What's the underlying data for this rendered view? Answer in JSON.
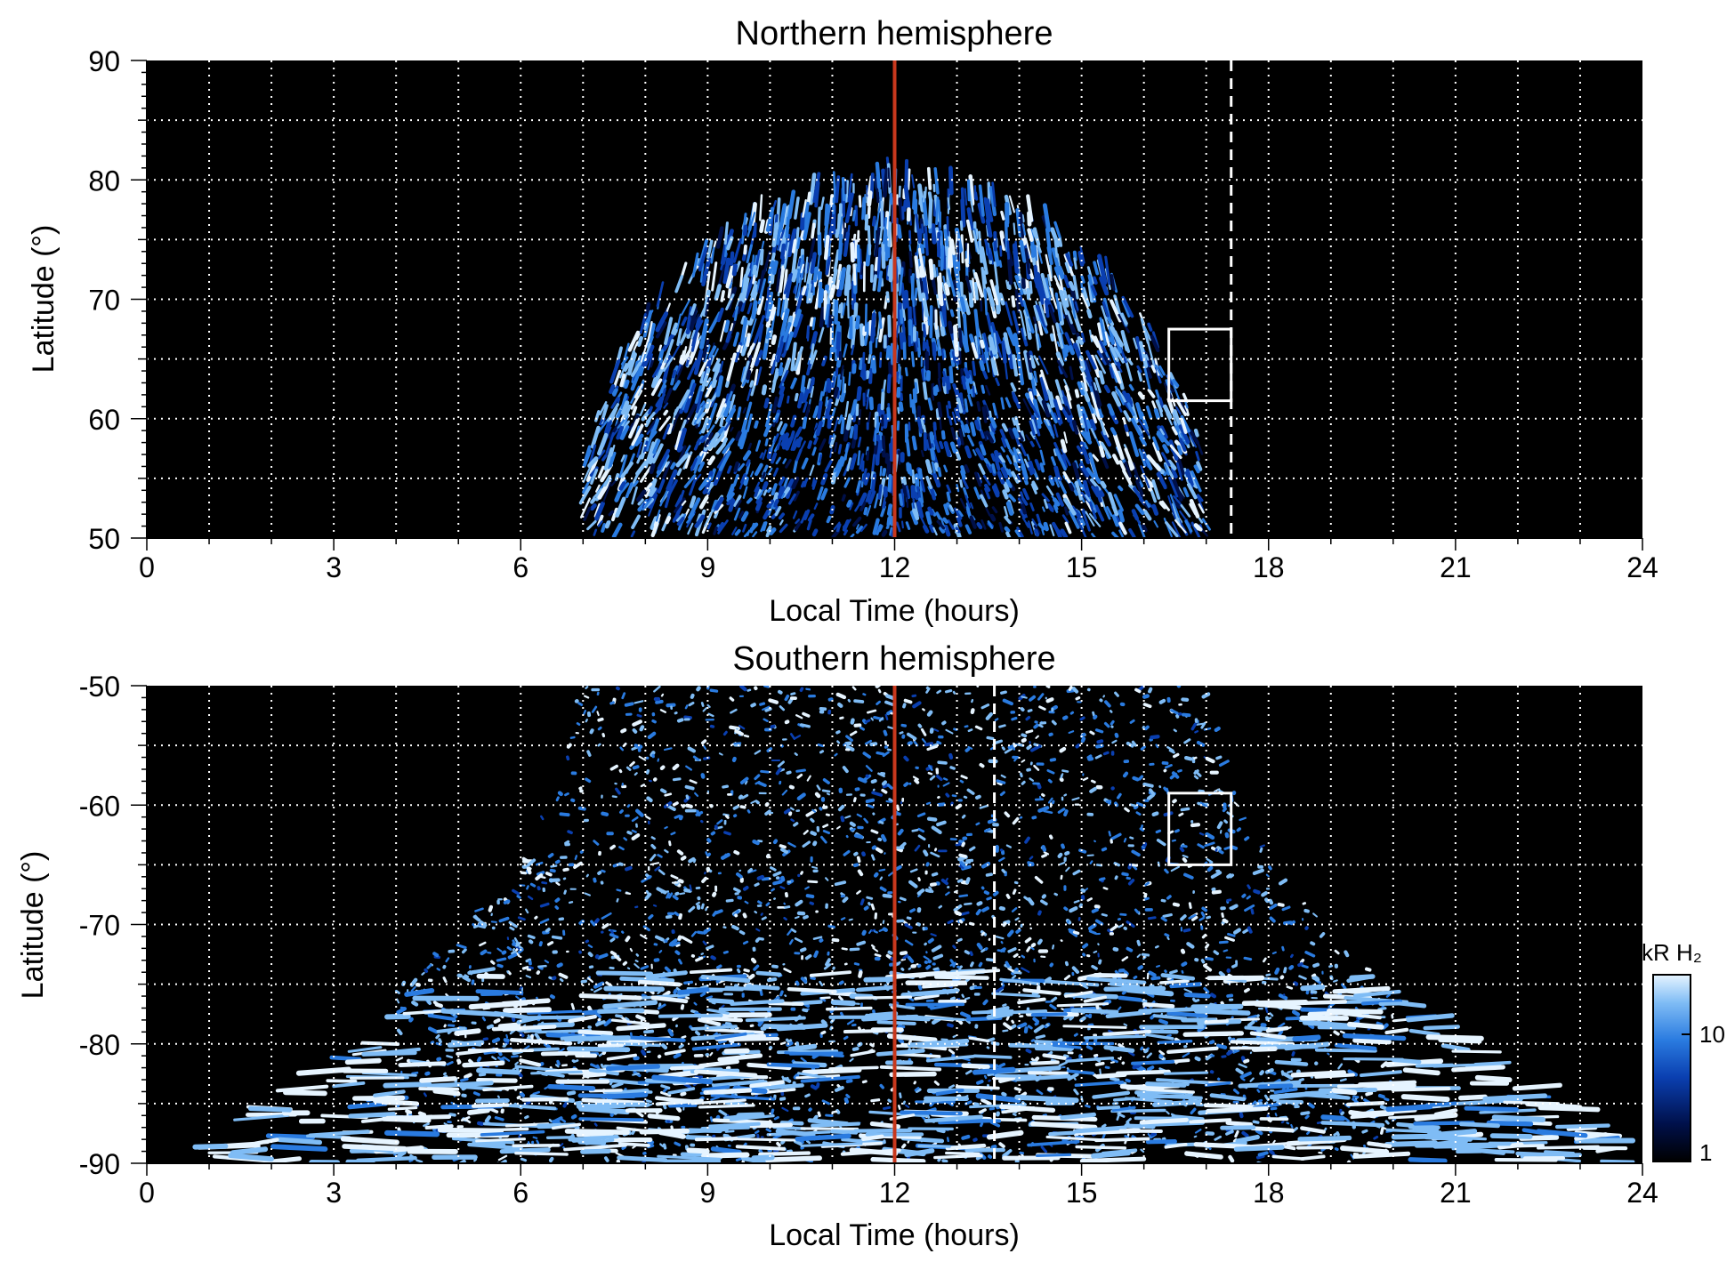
{
  "chart_data": [
    {
      "type": "heatmap",
      "title": "Northern hemisphere",
      "xlabel": "Local Time (hours)",
      "ylabel": "Latitude (°)",
      "xlim": [
        0,
        24
      ],
      "ylim": [
        50,
        90
      ],
      "xticks": [
        "0",
        "3",
        "6",
        "9",
        "12",
        "15",
        "18",
        "21",
        "24"
      ],
      "yticks": [
        "50",
        "60",
        "70",
        "80",
        "90"
      ],
      "grid": true,
      "noon_line_lt": 12,
      "noon_line_color": "#c8381d",
      "terminator_lt": 17.4,
      "box": {
        "lt": [
          16.4,
          17.4
        ],
        "lat": [
          61.5,
          67.5
        ]
      },
      "emission_region": {
        "lt": [
          7.0,
          17.0
        ],
        "lat_top": 79.5,
        "lat_bottom": 50
      }
    },
    {
      "type": "heatmap",
      "title": "Southern hemisphere",
      "xlabel": "Local Time (hours)",
      "ylabel": "Latitude (°)",
      "xlim": [
        0,
        24
      ],
      "ylim": [
        -90,
        -50
      ],
      "xticks": [
        "0",
        "3",
        "6",
        "9",
        "12",
        "15",
        "18",
        "21",
        "24"
      ],
      "yticks": [
        "-90",
        "-80",
        "-70",
        "-60",
        "-50"
      ],
      "grid": true,
      "noon_line_lt": 12,
      "noon_line_color": "#c8381d",
      "terminator_lt": 13.6,
      "box": {
        "lt": [
          16.4,
          17.4
        ],
        "lat": [
          -65,
          -59
        ]
      },
      "emission_region": {
        "lt": [
          0,
          24
        ],
        "lat_top": -50,
        "lat_bottom": -90
      }
    }
  ],
  "colorbar": {
    "label": "kR H₂",
    "scale": "log",
    "ticks": [
      "1",
      "10"
    ],
    "range": [
      1,
      30
    ],
    "colors": [
      "#000000",
      "#00104a",
      "#0a3fb0",
      "#2a7be0",
      "#7fbcf5",
      "#e6f4ff"
    ]
  }
}
